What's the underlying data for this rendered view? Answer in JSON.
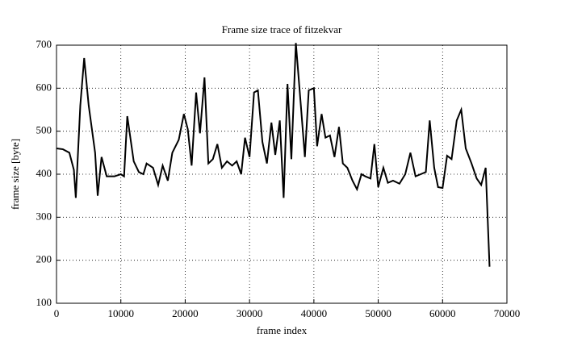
{
  "chart_data": {
    "type": "line",
    "title": "Frame size trace of fitzekvar",
    "xlabel": "frame index",
    "ylabel": "frame size [byte]",
    "x": [
      0,
      1000,
      2000,
      2700,
      3000,
      3700,
      4300,
      5000,
      6000,
      6400,
      7000,
      7800,
      9000,
      10000,
      10500,
      11000,
      12000,
      12800,
      13500,
      14000,
      15000,
      15800,
      16500,
      17300,
      18000,
      19000,
      19800,
      20400,
      21000,
      21700,
      22300,
      23000,
      23600,
      24300,
      25000,
      25700,
      26500,
      27300,
      28000,
      28700,
      29300,
      30000,
      30700,
      31300,
      32000,
      32700,
      33400,
      34000,
      34700,
      35300,
      35900,
      36500,
      37200,
      38000,
      38600,
      39200,
      40000,
      40500,
      41200,
      41800,
      42500,
      43200,
      43900,
      44500,
      45200,
      46000,
      46700,
      47400,
      48000,
      48800,
      49400,
      50000,
      50800,
      51500,
      52300,
      53300,
      54200,
      55000,
      55800,
      56600,
      57400,
      58000,
      58700,
      59300,
      60000,
      60700,
      61400,
      62200,
      62900,
      63600,
      64500,
      65300,
      66000,
      66700,
      67300
    ],
    "series": [
      {
        "name": "frame size",
        "color": "#000000",
        "values": [
          460,
          458,
          450,
          410,
          345,
          560,
          670,
          560,
          450,
          350,
          440,
          395,
          395,
          400,
          395,
          535,
          430,
          405,
          400,
          425,
          415,
          375,
          420,
          385,
          450,
          480,
          540,
          505,
          420,
          590,
          495,
          625,
          425,
          435,
          470,
          415,
          430,
          420,
          430,
          400,
          485,
          440,
          590,
          595,
          475,
          425,
          520,
          445,
          525,
          345,
          610,
          435,
          705,
          555,
          440,
          595,
          600,
          465,
          540,
          485,
          490,
          440,
          510,
          425,
          415,
          385,
          365,
          400,
          395,
          390,
          470,
          370,
          415,
          380,
          385,
          378,
          400,
          450,
          395,
          400,
          405,
          525,
          415,
          370,
          368,
          443,
          435,
          525,
          550,
          460,
          425,
          390,
          375,
          415,
          185
        ]
      }
    ],
    "xlim": [
      0,
      70000
    ],
    "xticks": [
      0,
      10000,
      20000,
      30000,
      40000,
      50000,
      60000,
      70000
    ],
    "ylim": [
      100,
      700
    ],
    "yticks": [
      100,
      200,
      300,
      400,
      500,
      600,
      700
    ],
    "grid": true
  }
}
